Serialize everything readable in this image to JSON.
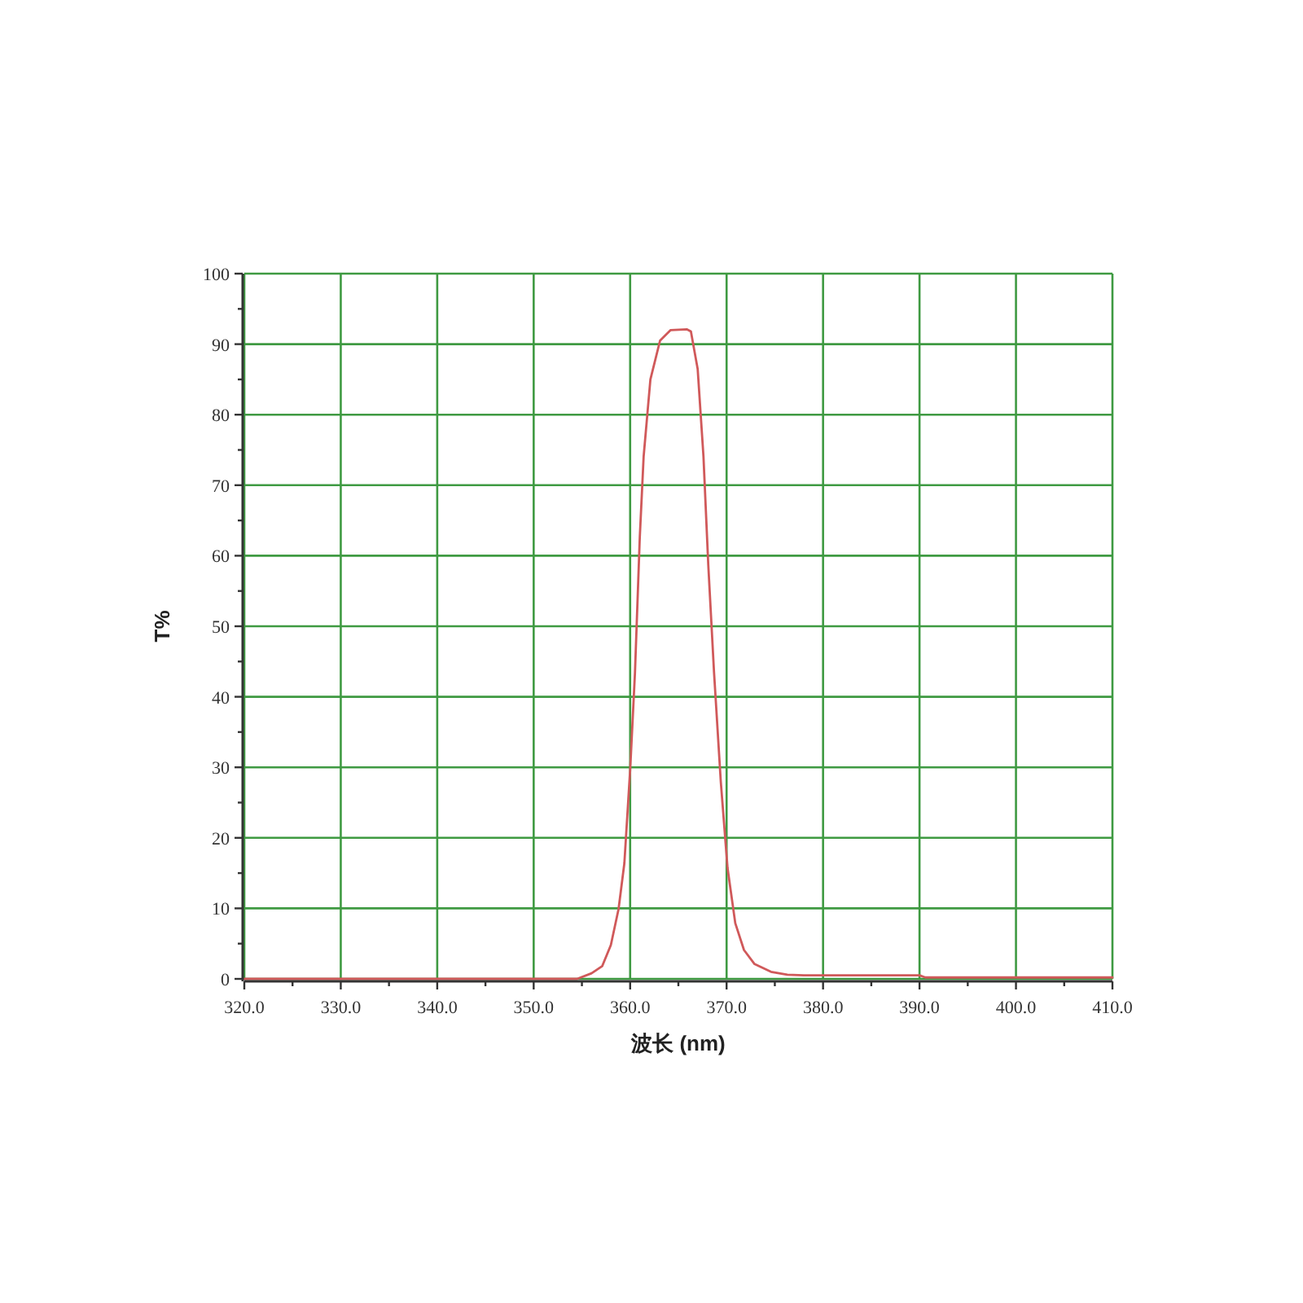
{
  "chart_data": {
    "type": "line",
    "xlabel": "波长 (nm)",
    "ylabel": "T%",
    "xlim": [
      320,
      410
    ],
    "ylim": [
      0,
      100
    ],
    "xticks": [
      {
        "value": 320,
        "label": "320.0"
      },
      {
        "value": 325,
        "label": null
      },
      {
        "value": 330,
        "label": "330.0"
      },
      {
        "value": 335,
        "label": null
      },
      {
        "value": 340,
        "label": "340.0"
      },
      {
        "value": 345,
        "label": null
      },
      {
        "value": 350,
        "label": "350.0"
      },
      {
        "value": 355,
        "label": null
      },
      {
        "value": 360,
        "label": "360.0"
      },
      {
        "value": 365,
        "label": null
      },
      {
        "value": 370,
        "label": "370.0"
      },
      {
        "value": 375,
        "label": null
      },
      {
        "value": 380,
        "label": "380.0"
      },
      {
        "value": 385,
        "label": null
      },
      {
        "value": 390,
        "label": "390.0"
      },
      {
        "value": 395,
        "label": null
      },
      {
        "value": 400,
        "label": "400.0"
      },
      {
        "value": 405,
        "label": null
      },
      {
        "value": 410,
        "label": "410.0"
      }
    ],
    "yticks": [
      0,
      {
        "value": 5,
        "label": null
      },
      10,
      {
        "value": 15,
        "label": null
      },
      20,
      {
        "value": 25,
        "label": null
      },
      30,
      {
        "value": 35,
        "label": null
      },
      40,
      {
        "value": 45,
        "label": null
      },
      50,
      {
        "value": 55,
        "label": null
      },
      60,
      {
        "value": 65,
        "label": null
      },
      70,
      {
        "value": 75,
        "label": null
      },
      80,
      {
        "value": 85,
        "label": null
      },
      90,
      {
        "value": 95,
        "label": null
      },
      100
    ],
    "grid": true,
    "series": [
      {
        "color": "#d0595a",
        "x": [
          320,
          354.5,
          356,
          357.1,
          358.0,
          358.8,
          359.4,
          360.0,
          360.5,
          361.0,
          361.4,
          362.1,
          363.1,
          364.2,
          365.9,
          366.3,
          367.0,
          367.6,
          368.1,
          368.7,
          369.4,
          370.1,
          370.9,
          371.8,
          372.9,
          374.6,
          376.3,
          378.0,
          390.0,
          390.6,
          410
        ],
        "values": [
          0,
          0,
          0.8,
          1.8,
          4.8,
          9.9,
          16.4,
          29.6,
          43.4,
          62.6,
          74.1,
          85,
          90.5,
          92,
          92.1,
          91.8,
          86.5,
          74.1,
          58.7,
          43.4,
          27.9,
          15.7,
          7.9,
          4.1,
          2.1,
          1.0,
          0.6,
          0.5,
          0.5,
          0.2,
          0.2
        ]
      }
    ]
  }
}
